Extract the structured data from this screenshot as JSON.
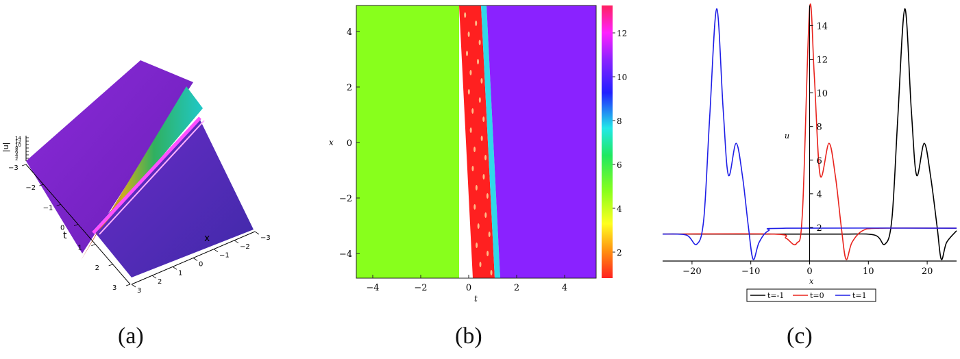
{
  "captions": [
    "(a)",
    "(b)",
    "(c)"
  ],
  "panel_a": {
    "axis_t": "t",
    "axis_x": "x",
    "axis_u": "|u|",
    "u_ticks": [
      "2",
      "4",
      "6",
      "8",
      "10",
      "12",
      "14"
    ],
    "t_ticks": [
      "−3",
      "−2",
      "−1",
      "0",
      "1",
      "2",
      "3"
    ],
    "x_ticks": [
      "−3",
      "−2",
      "−1",
      "0",
      "1",
      "2",
      "3"
    ],
    "colors": {
      "top": "#7f1fcf",
      "bottom": "#5a28b8",
      "crest_pink": "#ff40ff"
    }
  },
  "panel_b": {
    "xlabel": "t",
    "ylabel": "x",
    "x_ticks": [
      "−4",
      "−2",
      "0",
      "2",
      "4"
    ],
    "y_ticks": [
      "4",
      "2",
      "0",
      "−2",
      "−4"
    ],
    "colorbar_ticks": [
      "12",
      "10",
      "8",
      "6",
      "4",
      "2"
    ],
    "colors": {
      "left": "#88ff1c",
      "band": "#ff2020",
      "right": "#8a22ff"
    }
  },
  "chart_data": [
    {
      "type": "line",
      "xlabel": "x",
      "ylabel": "u",
      "xlim": [
        -25,
        25
      ],
      "ylim": [
        0,
        15.2
      ],
      "x_ticks": [
        -20,
        -10,
        0,
        10,
        20
      ],
      "y_ticks": [
        2,
        4,
        6,
        8,
        10,
        12,
        14
      ],
      "legend_position": "bottom",
      "series": [
        {
          "name": "t=-1",
          "color": "#000000",
          "points": [
            [
              -25,
              1.6
            ],
            [
              -10,
              1.6
            ],
            [
              5,
              1.6
            ],
            [
              11,
              1.55
            ],
            [
              12.8,
              1.0
            ],
            [
              14,
              2.5
            ],
            [
              15,
              8.5
            ],
            [
              16.2,
              15.0
            ],
            [
              17.3,
              9.0
            ],
            [
              18.2,
              5.1
            ],
            [
              19.5,
              7.0
            ],
            [
              20.6,
              5.0
            ],
            [
              21.7,
              2.0
            ],
            [
              22.4,
              0.1
            ],
            [
              23.3,
              1.1
            ],
            [
              25,
              1.8
            ]
          ]
        },
        {
          "name": "t=0",
          "color": "#e8231d",
          "points": [
            [
              -25,
              1.6
            ],
            [
              -6,
              1.6
            ],
            [
              -4,
              1.35
            ],
            [
              -2.2,
              1.05
            ],
            [
              -1.2,
              3.0
            ],
            [
              0,
              15.0
            ],
            [
              0.8,
              11.0
            ],
            [
              1.8,
              5.1
            ],
            [
              3.3,
              7.0
            ],
            [
              4.4,
              5.0
            ],
            [
              5.4,
              2.0
            ],
            [
              6.2,
              0.1
            ],
            [
              7.2,
              1.1
            ],
            [
              9.0,
              1.8
            ],
            [
              12,
              1.95
            ],
            [
              25,
              1.95
            ]
          ]
        },
        {
          "name": "t=1",
          "color": "#1e1ee6",
          "points": [
            [
              -25,
              1.6
            ],
            [
              -21,
              1.55
            ],
            [
              -19.2,
              1.0
            ],
            [
              -18,
              2.5
            ],
            [
              -17,
              8.5
            ],
            [
              -15.8,
              15.0
            ],
            [
              -14.7,
              9.0
            ],
            [
              -13.8,
              5.1
            ],
            [
              -12.5,
              7.0
            ],
            [
              -11.4,
              5.0
            ],
            [
              -10.4,
              2.0
            ],
            [
              -9.6,
              0.1
            ],
            [
              -8.6,
              1.1
            ],
            [
              -7,
              1.8
            ],
            [
              -4,
              1.95
            ],
            [
              25,
              1.95
            ]
          ]
        }
      ]
    }
  ]
}
